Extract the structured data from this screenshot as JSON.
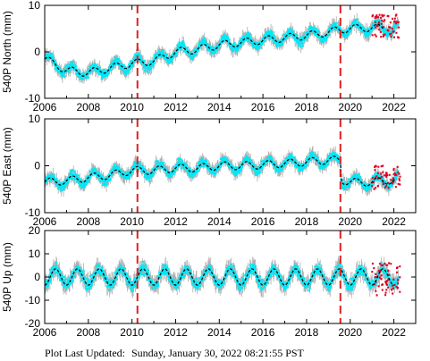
{
  "footer": {
    "label": "Plot Last Updated:",
    "timestamp": "Sunday, January 30, 2022 08:21:55 PST"
  },
  "colors": {
    "raw": "#00e8f8",
    "error_bars": "#b0b0b0",
    "recent": "#e00020",
    "model": "#000000",
    "breaks": "#e02020"
  },
  "chart_data": [
    {
      "type": "scatter",
      "ylabel": "540P North (mm)",
      "xlim": [
        2006,
        2023
      ],
      "ylim": [
        -10,
        10
      ],
      "xticks": [
        2006,
        2008,
        2010,
        2012,
        2014,
        2016,
        2018,
        2020,
        2022
      ],
      "yticks": [
        -10,
        0,
        10
      ],
      "vertical_lines": [
        2010.25,
        2019.55
      ],
      "model": {
        "x": [
          2006.0,
          2007.0,
          2008.0,
          2009.0,
          2010.0,
          2011.0,
          2012.0,
          2013.0,
          2014.0,
          2015.0,
          2016.0,
          2017.0,
          2018.0,
          2019.0,
          2019.55,
          2020.0,
          2021.0,
          2021.5
        ],
        "y": [
          -1.5,
          -4.0,
          -4.5,
          -3.5,
          -2.5,
          -2.0,
          0.0,
          0.5,
          1.5,
          2.0,
          2.5,
          3.0,
          3.5,
          4.2,
          4.8,
          5.0,
          5.2,
          5.0
        ]
      },
      "recent_points": {
        "x_range": [
          2021.0,
          2022.3
        ],
        "y_range": [
          3,
          8
        ]
      },
      "grid": false,
      "legend": "none"
    },
    {
      "type": "scatter",
      "ylabel": "540P East (mm)",
      "xlim": [
        2006,
        2023
      ],
      "ylim": [
        -10,
        10
      ],
      "xticks": [
        2006,
        2008,
        2010,
        2012,
        2014,
        2016,
        2018,
        2020,
        2022
      ],
      "yticks": [
        -10,
        0,
        10
      ],
      "vertical_lines": [
        2010.25,
        2019.55
      ],
      "model": {
        "x": [
          2006.0,
          2007.0,
          2008.0,
          2009.0,
          2010.0,
          2011.0,
          2012.0,
          2013.0,
          2014.0,
          2015.0,
          2016.0,
          2017.0,
          2018.0,
          2019.0,
          2019.55,
          2019.6,
          2020.0,
          2021.0,
          2022.0
        ],
        "y": [
          -3.5,
          -3.2,
          -2.5,
          -2.0,
          -1.0,
          -1.0,
          -0.5,
          -0.5,
          0.0,
          0.0,
          0.2,
          0.5,
          0.8,
          1.2,
          1.2,
          -3.0,
          -3.5,
          -3.5,
          -3.0
        ]
      },
      "recent_points": {
        "x_range": [
          2021.0,
          2022.3
        ],
        "y_range": [
          -5,
          0
        ]
      },
      "grid": false,
      "legend": "none"
    },
    {
      "type": "scatter",
      "ylabel": "540P Up (mm)",
      "xlim": [
        2006,
        2023
      ],
      "ylim": [
        -20,
        20
      ],
      "xticks": [
        2006,
        2008,
        2010,
        2012,
        2014,
        2016,
        2018,
        2020,
        2022
      ],
      "yticks": [
        -20,
        -10,
        0,
        10,
        20
      ],
      "vertical_lines": [
        2010.25,
        2019.55
      ],
      "model": {
        "mean": 0,
        "seasonal_amplitude_mm": 3.5,
        "x_range": [
          2006,
          2022
        ]
      },
      "recent_points": {
        "x_range": [
          2021.0,
          2022.3
        ],
        "y_range": [
          -8,
          6
        ]
      },
      "grid": false,
      "legend": "none"
    }
  ]
}
